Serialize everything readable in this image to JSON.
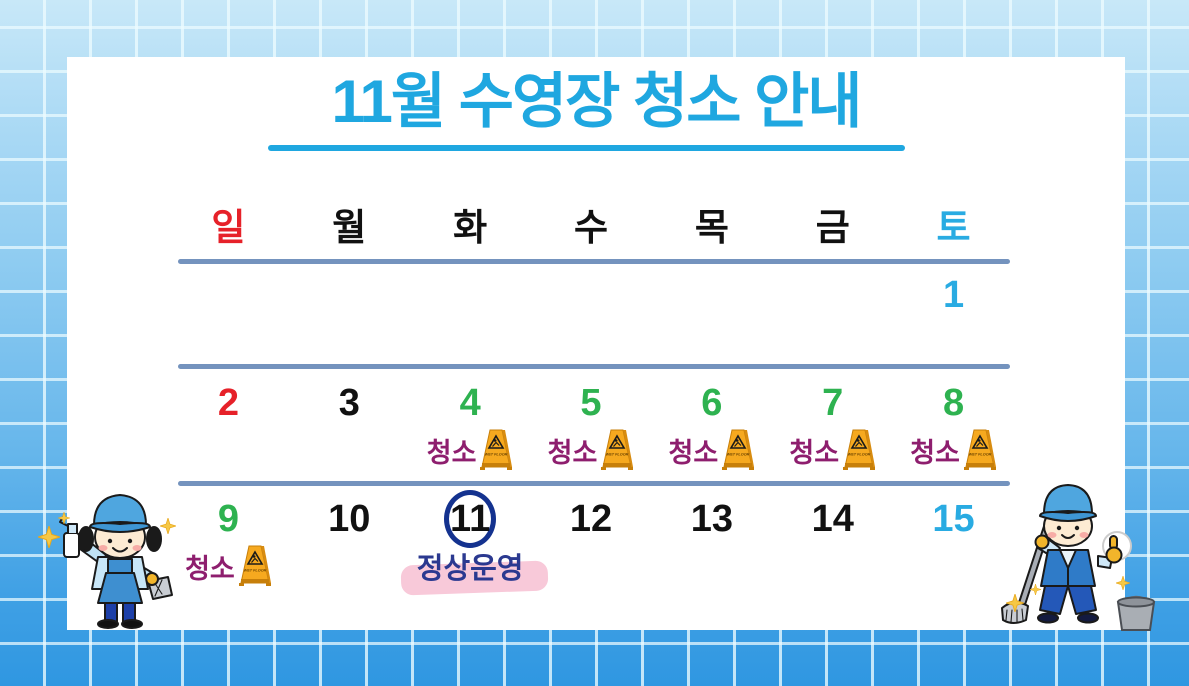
{
  "poster": {
    "title": "11월 수영장 청소 안내"
  },
  "calendar": {
    "day_headers": [
      {
        "label": "일",
        "color": "sunday"
      },
      {
        "label": "월",
        "color": "weekday"
      },
      {
        "label": "화",
        "color": "weekday"
      },
      {
        "label": "수",
        "color": "weekday"
      },
      {
        "label": "목",
        "color": "weekday"
      },
      {
        "label": "금",
        "color": "weekday"
      },
      {
        "label": "토",
        "color": "saturday"
      }
    ],
    "cleaning_label": "청소",
    "normal_operation_label": "정상운영",
    "sign_text": "WET FLOOR",
    "weeks": [
      {
        "days": [
          {
            "day": "",
            "color": "weekday"
          },
          {
            "day": "",
            "color": "weekday"
          },
          {
            "day": "",
            "color": "weekday"
          },
          {
            "day": "",
            "color": "weekday"
          },
          {
            "day": "",
            "color": "weekday"
          },
          {
            "day": "",
            "color": "weekday"
          },
          {
            "day": "1",
            "color": "saturday"
          }
        ]
      },
      {
        "days": [
          {
            "day": "2",
            "color": "sunday"
          },
          {
            "day": "3",
            "color": "weekday"
          },
          {
            "day": "4",
            "color": "cleaning",
            "annotation": "cleaning"
          },
          {
            "day": "5",
            "color": "cleaning",
            "annotation": "cleaning"
          },
          {
            "day": "6",
            "color": "cleaning",
            "annotation": "cleaning"
          },
          {
            "day": "7",
            "color": "cleaning",
            "annotation": "cleaning"
          },
          {
            "day": "8",
            "color": "cleaning",
            "annotation": "cleaning"
          }
        ]
      },
      {
        "days": [
          {
            "day": "9",
            "color": "cleaning",
            "annotation": "cleaning"
          },
          {
            "day": "10",
            "color": "weekday"
          },
          {
            "day": "11",
            "color": "weekday",
            "circled": true,
            "annotation": "normal"
          },
          {
            "day": "12",
            "color": "weekday"
          },
          {
            "day": "13",
            "color": "weekday"
          },
          {
            "day": "14",
            "color": "weekday"
          },
          {
            "day": "15",
            "color": "saturday"
          }
        ]
      }
    ]
  },
  "icons": {
    "wet_floor_sign": "yellow A-frame caution sign",
    "sparkle": "✦",
    "cleaner_woman": "woman cleaner with spray bottle and cloth",
    "cleaner_man": "man cleaner with mop giving thumbs up",
    "bucket": "gray bucket"
  },
  "colors": {
    "title_blue": "#1FA7E0",
    "sunday_red": "#E62129",
    "saturday_blue": "#29ABE2",
    "cleaning_green": "#2EB250",
    "cleaning_label_purple": "#8E1E6E",
    "normal_navy": "#2B3990",
    "highlight_pink": "#F8C9D9",
    "divider_blue": "#7493BE",
    "circle_navy": "#14328F",
    "sign_yellow": "#F6A91F",
    "card_white": "#FFFFFF"
  }
}
